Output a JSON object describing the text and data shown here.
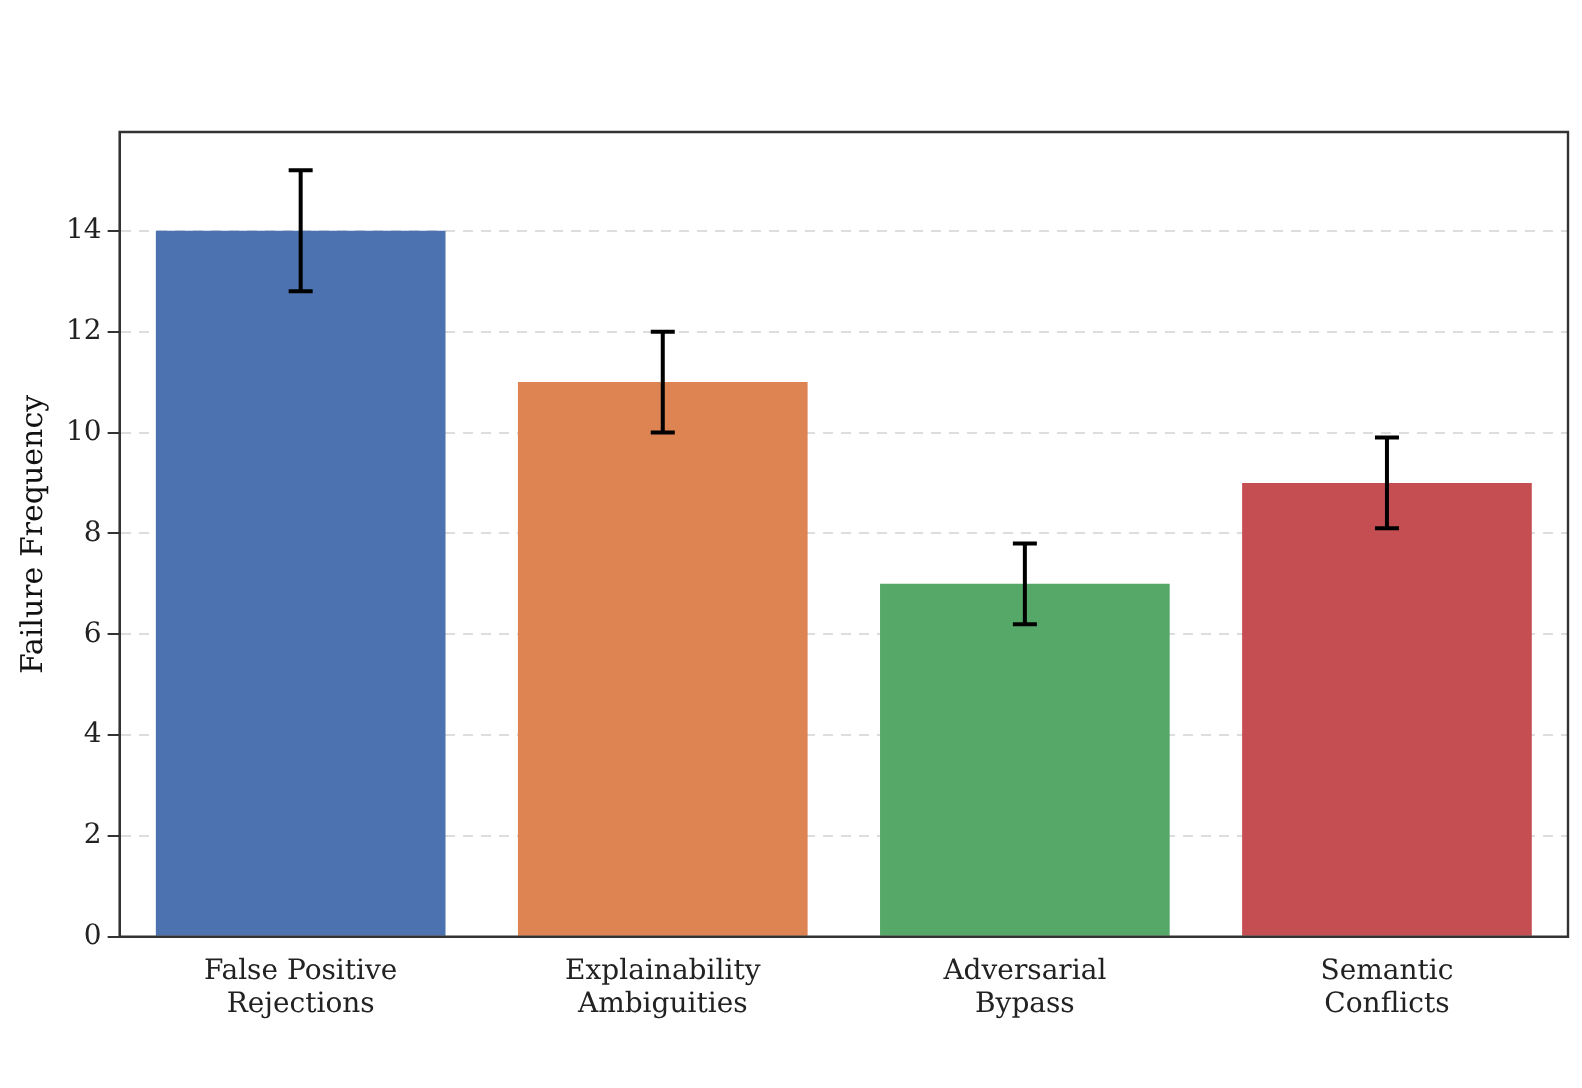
{
  "chart_data": {
    "type": "bar",
    "ylabel": "Failure Frequency",
    "categories": [
      "False Positive\nRejections",
      "Explainability\nAmbiguities",
      "Adversarial\nBypass",
      "Semantic\nConflicts"
    ],
    "values": [
      14,
      11,
      7,
      9
    ],
    "colors": [
      "#4c72b0",
      "#dd8452",
      "#55a868",
      "#c44e52"
    ],
    "errors": [
      1.2,
      1,
      0.8,
      0.9
    ],
    "ylim": [
      0,
      15.96
    ],
    "yticks": [
      0,
      2,
      4,
      6,
      8,
      10,
      12,
      14
    ],
    "grid": "y"
  }
}
